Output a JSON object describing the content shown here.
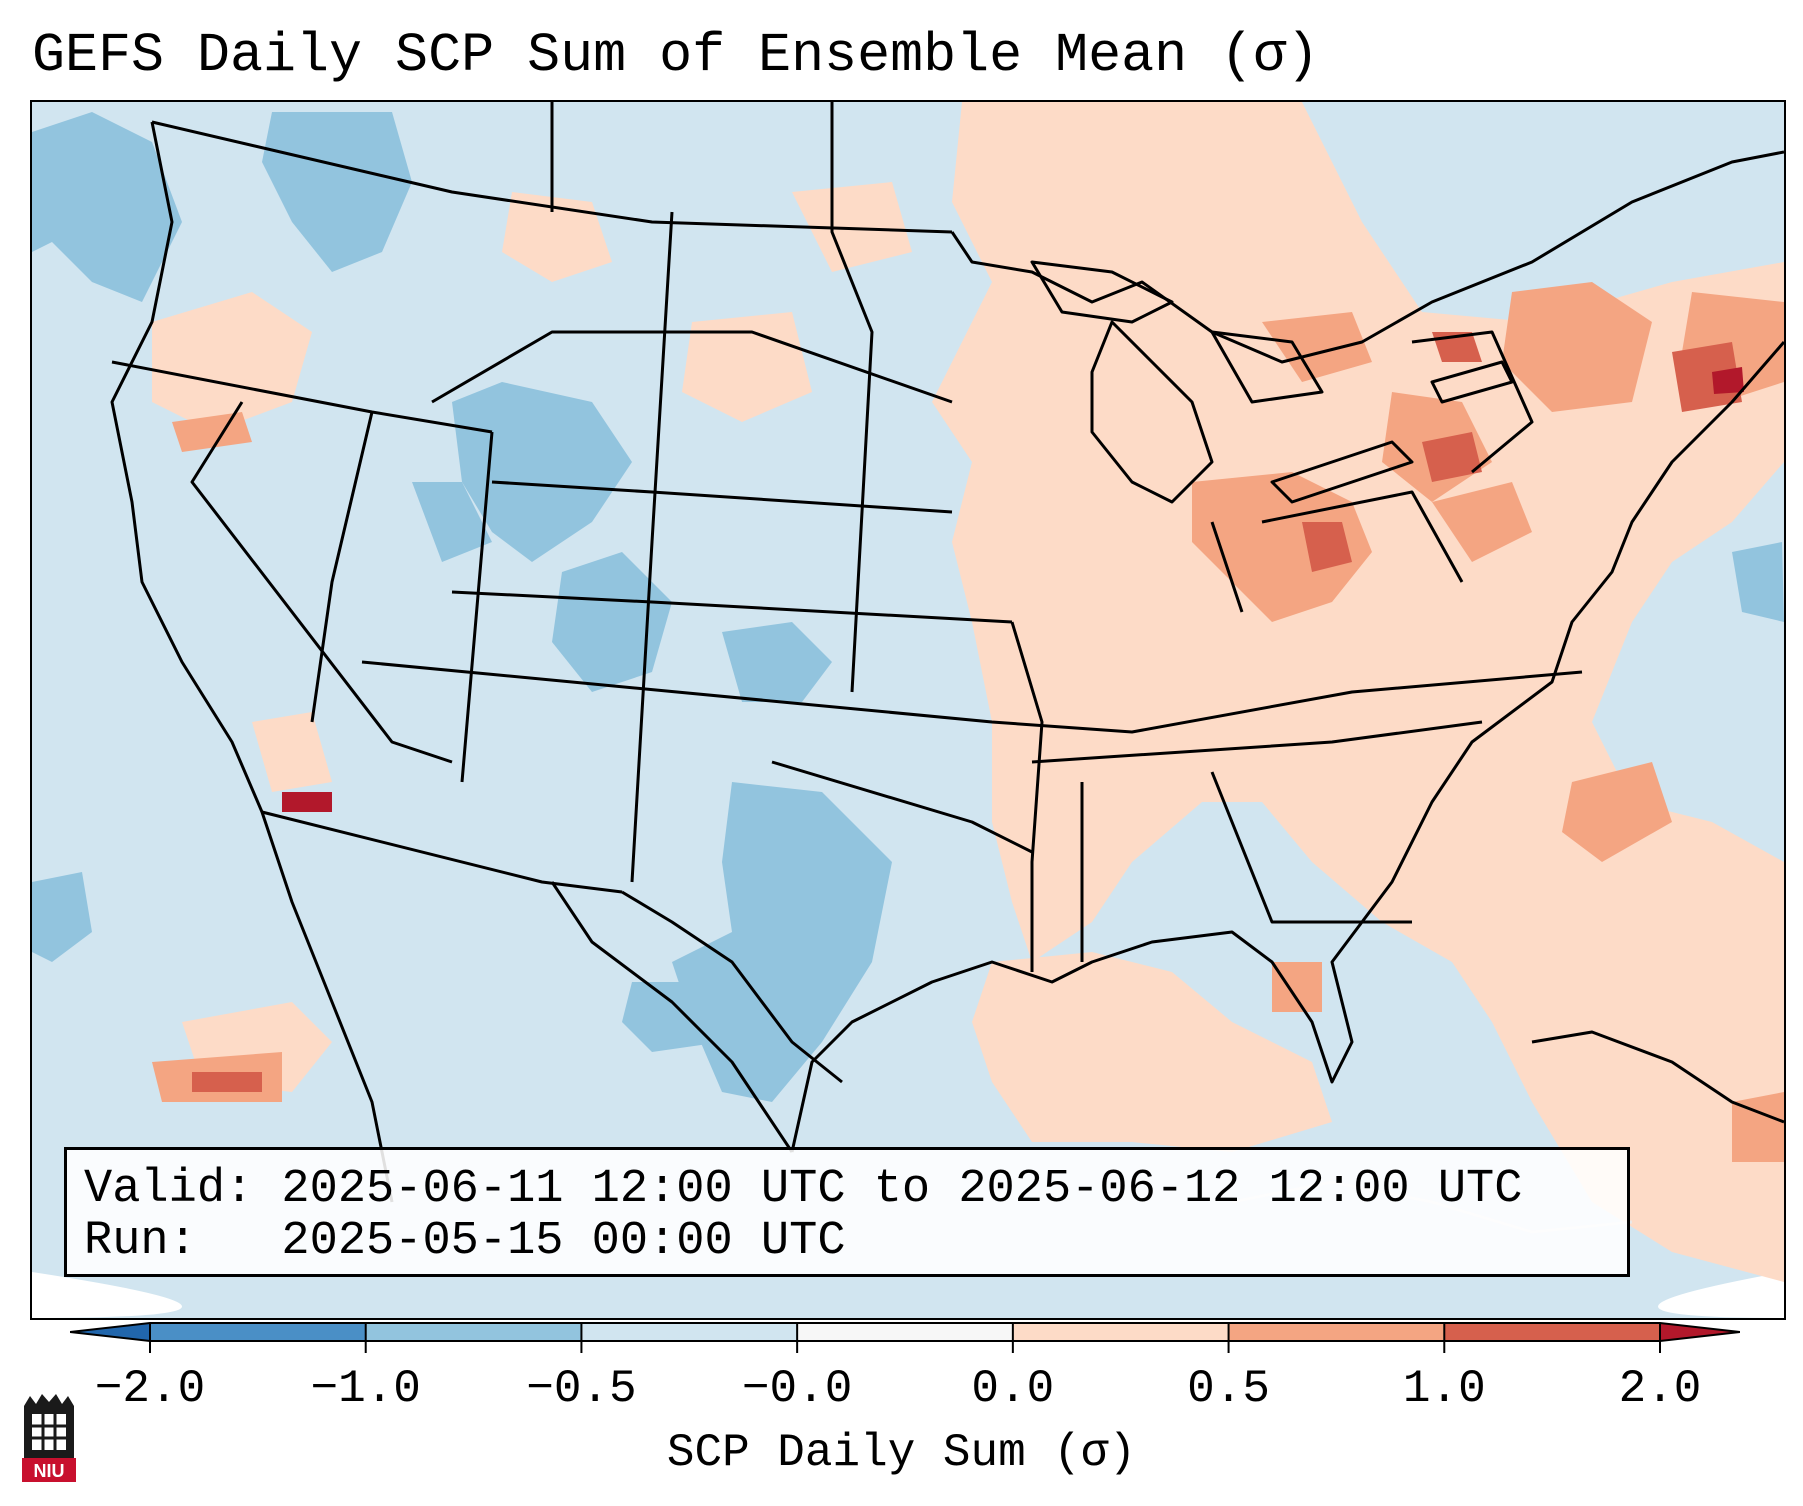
{
  "title": "GEFS Daily SCP Sum of Ensemble Mean (σ)",
  "info": {
    "valid_line": "Valid: 2025-06-11 12:00 UTC to 2025-06-12 12:00 UTC",
    "run_line": "Run:   2025-05-15 00:00 UTC"
  },
  "colorbar": {
    "label": "SCP Daily Sum (σ)",
    "ticks": [
      "−2.0",
      "−1.0",
      "−0.5",
      "−0.0",
      "0.0",
      "0.5",
      "1.0",
      "2.0"
    ],
    "colors": [
      "#4a8fc6",
      "#92c4de",
      "#d1e5f0",
      "#f7f7f7",
      "#fddbc7",
      "#f4a582",
      "#d6604d"
    ],
    "extend_low_color": "#2166ac",
    "extend_high_color": "#b2182b"
  },
  "logo": {
    "text": "NIU",
    "icon": "niu-logo-icon"
  }
}
